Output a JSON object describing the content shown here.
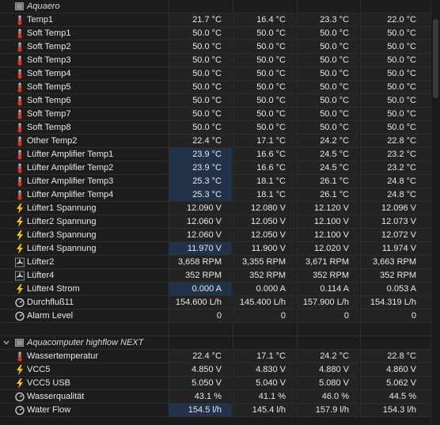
{
  "groups": [
    {
      "title": "Aquaero",
      "rows": [
        {
          "label": "Temp1",
          "icon": "thermometer",
          "values": [
            "21.7 °C",
            "16.4 °C",
            "23.3 °C",
            "22.0 °C"
          ]
        },
        {
          "label": "Soft Temp1",
          "icon": "thermometer",
          "values": [
            "50.0 °C",
            "50.0 °C",
            "50.0 °C",
            "50.0 °C"
          ]
        },
        {
          "label": "Soft Temp2",
          "icon": "thermometer",
          "values": [
            "50.0 °C",
            "50.0 °C",
            "50.0 °C",
            "50.0 °C"
          ]
        },
        {
          "label": "Soft Temp3",
          "icon": "thermometer",
          "values": [
            "50.0 °C",
            "50.0 °C",
            "50.0 °C",
            "50.0 °C"
          ]
        },
        {
          "label": "Soft Temp4",
          "icon": "thermometer",
          "values": [
            "50.0 °C",
            "50.0 °C",
            "50.0 °C",
            "50.0 °C"
          ]
        },
        {
          "label": "Soft Temp5",
          "icon": "thermometer",
          "values": [
            "50.0 °C",
            "50.0 °C",
            "50.0 °C",
            "50.0 °C"
          ]
        },
        {
          "label": "Soft Temp6",
          "icon": "thermometer",
          "values": [
            "50.0 °C",
            "50.0 °C",
            "50.0 °C",
            "50.0 °C"
          ]
        },
        {
          "label": "Soft Temp7",
          "icon": "thermometer",
          "values": [
            "50.0 °C",
            "50.0 °C",
            "50.0 °C",
            "50.0 °C"
          ]
        },
        {
          "label": "Soft Temp8",
          "icon": "thermometer",
          "values": [
            "50.0 °C",
            "50.0 °C",
            "50.0 °C",
            "50.0 °C"
          ]
        },
        {
          "label": "Other Temp2",
          "icon": "thermometer",
          "values": [
            "22.4 °C",
            "17.1 °C",
            "24.2 °C",
            "22.8 °C"
          ]
        },
        {
          "label": "Lüfter Amplifier Temp1",
          "icon": "thermometer",
          "values": [
            "23.9 °C",
            "16.6 °C",
            "24.5 °C",
            "23.2 °C"
          ],
          "highlight": true
        },
        {
          "label": "Lüfter Amplifier Temp2",
          "icon": "thermometer",
          "values": [
            "23.9 °C",
            "16.6 °C",
            "24.5 °C",
            "23.2 °C"
          ],
          "highlight": true
        },
        {
          "label": "Lüfter Amplifier Temp3",
          "icon": "thermometer",
          "values": [
            "25.3 °C",
            "18.1 °C",
            "26.1 °C",
            "24.8 °C"
          ],
          "highlight": true
        },
        {
          "label": "Lüfter Amplifier Temp4",
          "icon": "thermometer",
          "values": [
            "25.3 °C",
            "18.1 °C",
            "26.1 °C",
            "24.8 °C"
          ],
          "highlight": true
        },
        {
          "label": "Lüfter1 Spannung",
          "icon": "lightning",
          "values": [
            "12.090 V",
            "12.080 V",
            "12.120 V",
            "12.096 V"
          ]
        },
        {
          "label": "Lüfter2 Spannung",
          "icon": "lightning",
          "values": [
            "12.060 V",
            "12.050 V",
            "12.100 V",
            "12.073 V"
          ]
        },
        {
          "label": "Lüfter3 Spannung",
          "icon": "lightning",
          "values": [
            "12.060 V",
            "12.050 V",
            "12.100 V",
            "12.072 V"
          ]
        },
        {
          "label": "Lüfter4 Spannung",
          "icon": "lightning",
          "values": [
            "11.970 V",
            "11.900 V",
            "12.020 V",
            "11.974 V"
          ],
          "highlight": true
        },
        {
          "label": "Lüfter2",
          "icon": "fan",
          "values": [
            "3,658 RPM",
            "3,355 RPM",
            "3,671 RPM",
            "3,663 RPM"
          ]
        },
        {
          "label": "Lüfter4",
          "icon": "fan",
          "values": [
            "352 RPM",
            "352 RPM",
            "352 RPM",
            "352 RPM"
          ]
        },
        {
          "label": "Lüfter4 Strom",
          "icon": "lightning",
          "values": [
            "0.000 A",
            "0.000 A",
            "0.114 A",
            "0.053 A"
          ],
          "highlight": true
        },
        {
          "label": "Durchfluß11",
          "icon": "gauge",
          "values": [
            "154.600 L/h",
            "145.400 L/h",
            "157.900 L/h",
            "154.319 L/h"
          ]
        },
        {
          "label": "Alarm Level",
          "icon": "gauge",
          "values": [
            "0",
            "0",
            "0",
            "0"
          ]
        }
      ]
    },
    {
      "title": "Aquacomputer highflow NEXT",
      "rows": [
        {
          "label": "Wassertemperatur",
          "icon": "thermometer",
          "values": [
            "22.4 °C",
            "17.1 °C",
            "24.2 °C",
            "22.8 °C"
          ]
        },
        {
          "label": "VCC5",
          "icon": "lightning",
          "values": [
            "4.850 V",
            "4.830 V",
            "4.880 V",
            "4.860 V"
          ]
        },
        {
          "label": "VCC5 USB",
          "icon": "lightning",
          "values": [
            "5.050 V",
            "5.040 V",
            "5.080 V",
            "5.062 V"
          ]
        },
        {
          "label": "Wasserqualität",
          "icon": "gauge",
          "values": [
            "43.1 %",
            "41.1 %",
            "46.0 %",
            "44.5 %"
          ]
        },
        {
          "label": "Water Flow",
          "icon": "gauge",
          "values": [
            "154.5 l/h",
            "145.4 l/h",
            "157.9 l/h",
            "154.3 l/h"
          ],
          "highlight": true
        }
      ]
    }
  ],
  "colors": {
    "thermometer_bulb": "#e0301e",
    "thermometer_body": "#c9c9c9",
    "lightning": "#f3c21a",
    "gauge": "#d8d8d8",
    "highlight": "#22324a"
  }
}
